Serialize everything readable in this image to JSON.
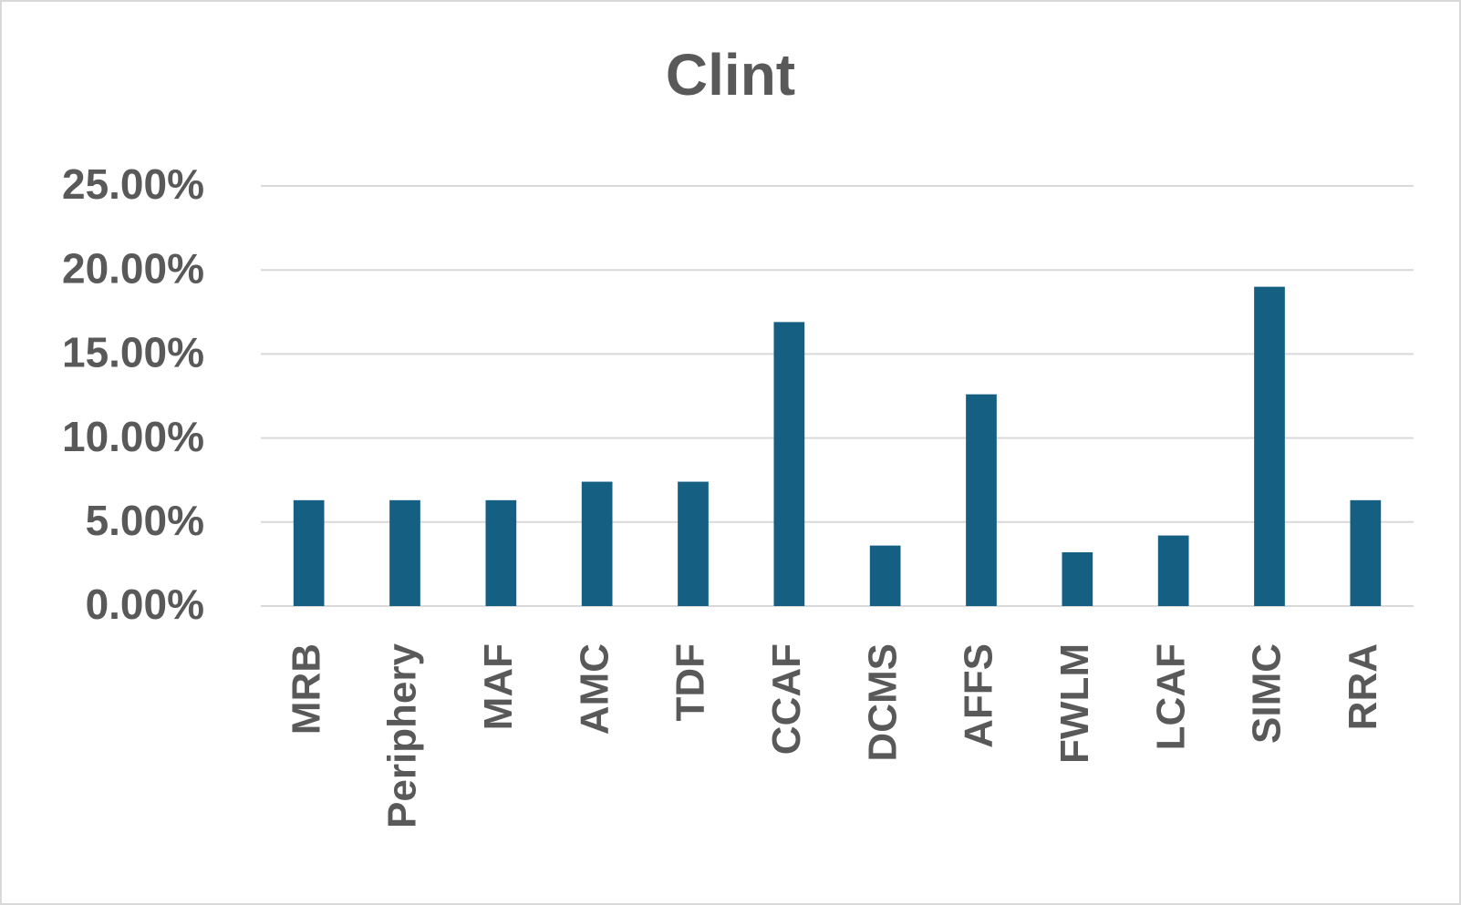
{
  "chart_data": {
    "type": "bar",
    "title": "Clint",
    "categories": [
      "MRB",
      "Periphery",
      "MAF",
      "AMC",
      "TDF",
      "CCAF",
      "DCMS",
      "AFFS",
      "FWLM",
      "LCAF",
      "SIMC",
      "RRA"
    ],
    "values": [
      6.3,
      6.3,
      6.3,
      7.4,
      7.4,
      16.9,
      3.6,
      12.6,
      3.2,
      4.2,
      19.0,
      6.3
    ],
    "color": "#156082",
    "ylim": [
      0,
      25
    ],
    "yticks": [
      {
        "value": 0,
        "label": "0.00%"
      },
      {
        "value": 5,
        "label": "5.00%"
      },
      {
        "value": 10,
        "label": "10.00%"
      },
      {
        "value": 15,
        "label": "15.00%"
      },
      {
        "value": 20,
        "label": "20.00%"
      },
      {
        "value": 25,
        "label": "25.00%"
      }
    ],
    "grid": true
  }
}
